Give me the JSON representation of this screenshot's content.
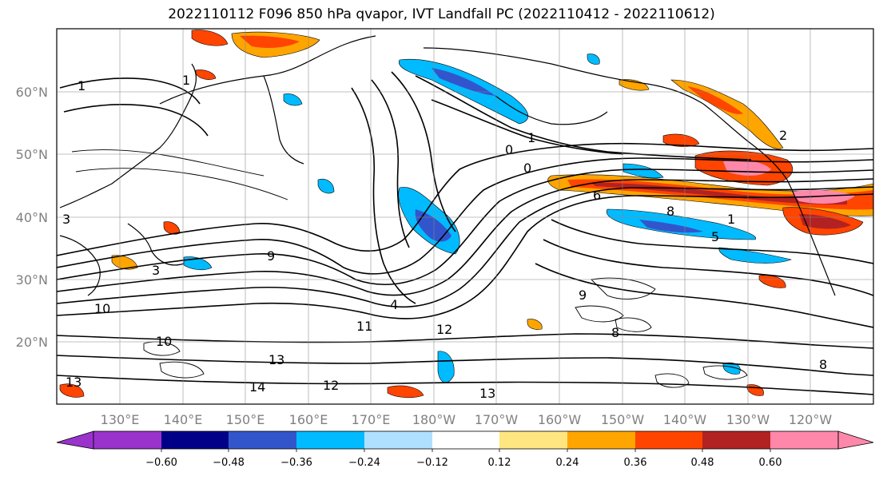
{
  "title": "2022110112 F096 850 hPa qvapor, IVT Landfall PC (2022110412 - 2022110612)",
  "lat_ticks": [
    "60°N",
    "50°N",
    "40°N",
    "30°N",
    "20°N"
  ],
  "lon_ticks": [
    "130°E",
    "140°E",
    "150°E",
    "160°E",
    "170°E",
    "180°W",
    "170°W",
    "160°W",
    "150°W",
    "140°W",
    "130°W",
    "120°W"
  ],
  "colorbar": {
    "colors": [
      "#9933cc",
      "#000088",
      "#3355cc",
      "#00bbff",
      "#b0e0ff",
      "#ffffff",
      "#ffe680",
      "#ffa500",
      "#ff4500",
      "#b22222",
      "#ff88aa"
    ],
    "tick_labels": [
      "−0.60",
      "−0.48",
      "−0.36",
      "−0.24",
      "−0.12",
      "0.12",
      "0.24",
      "0.36",
      "0.48",
      "0.60"
    ]
  },
  "contour_labels": [
    "1",
    "1",
    "0",
    "1",
    "0",
    "6",
    "8",
    "1",
    "3",
    "5",
    "9",
    "3",
    "4",
    "10",
    "10",
    "11",
    "12",
    "13",
    "13",
    "12",
    "14",
    "9",
    "8",
    "8",
    "13",
    "2"
  ]
}
